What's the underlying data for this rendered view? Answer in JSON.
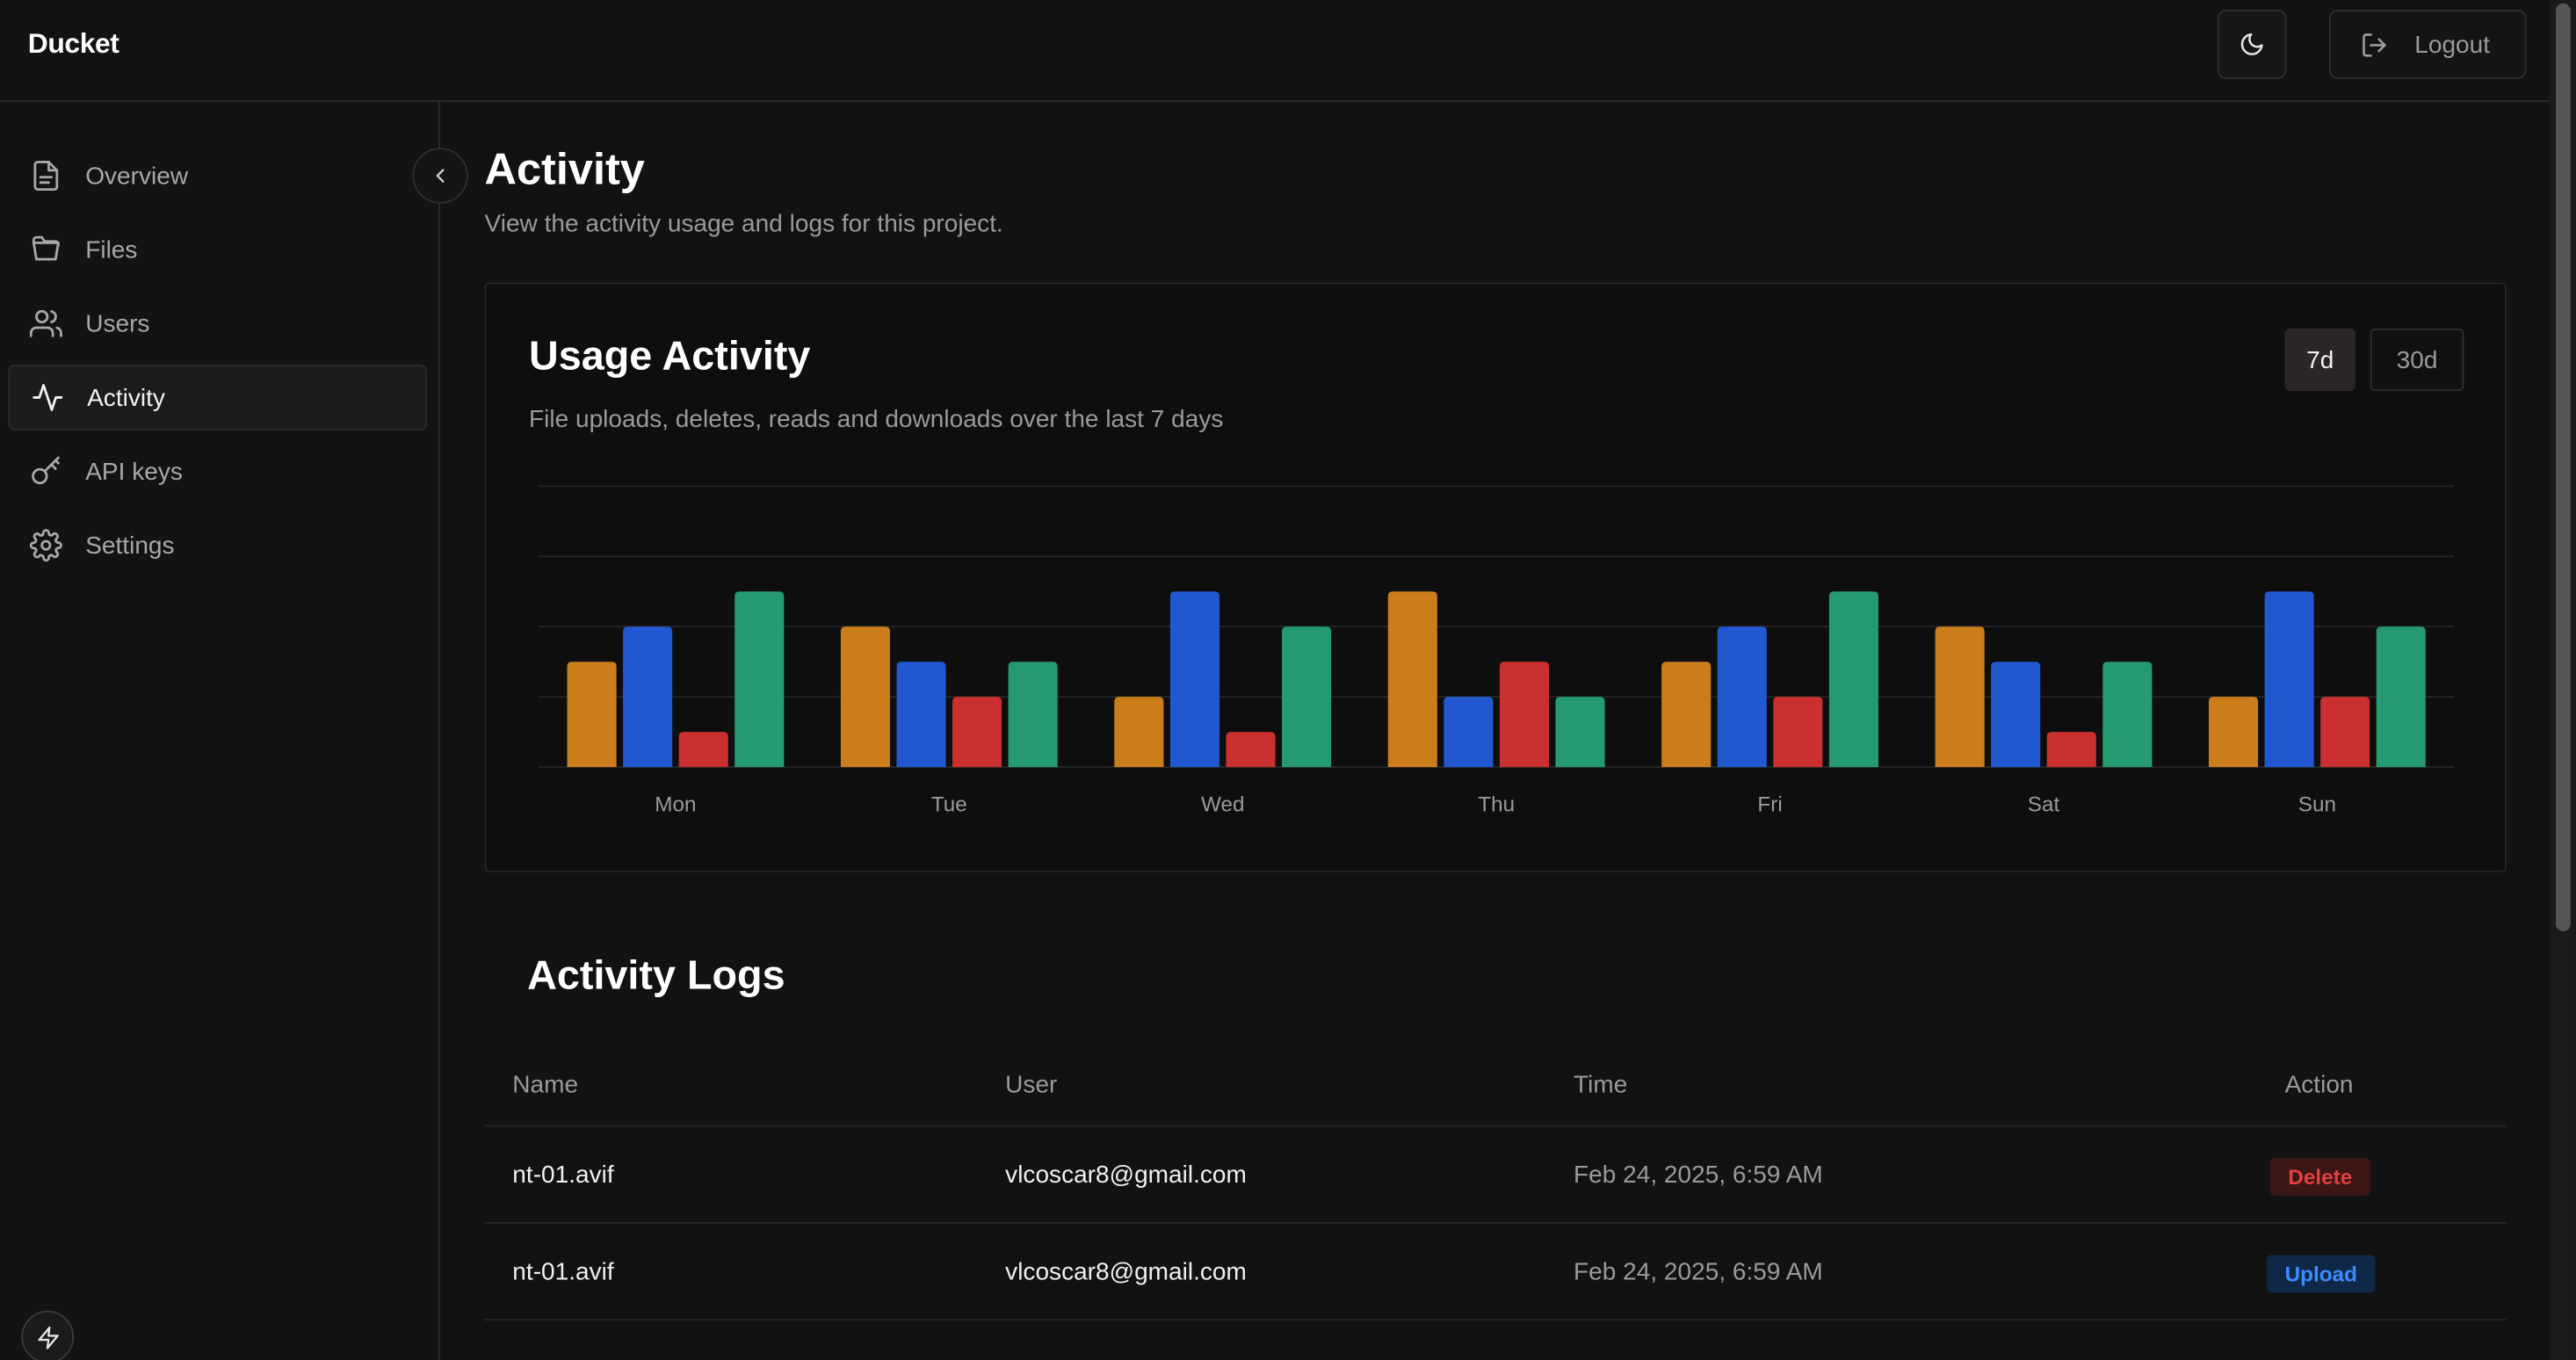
{
  "app": {
    "brand": "Ducket"
  },
  "header": {
    "logout_label": "Logout",
    "theme_icon": "moon-icon",
    "logout_icon": "logout-icon"
  },
  "sidebar": {
    "items": [
      {
        "label": "Overview",
        "icon": "document-icon",
        "active": false
      },
      {
        "label": "Files",
        "icon": "folder-icon",
        "active": false
      },
      {
        "label": "Users",
        "icon": "users-icon",
        "active": false
      },
      {
        "label": "Activity",
        "icon": "activity-icon",
        "active": true
      },
      {
        "label": "API keys",
        "icon": "key-icon",
        "active": false
      },
      {
        "label": "Settings",
        "icon": "gear-icon",
        "active": false
      }
    ]
  },
  "page": {
    "title": "Activity",
    "subtitle": "View the activity usage and logs for this project."
  },
  "usage": {
    "title": "Usage Activity",
    "subtitle": "File uploads, deletes, reads and downloads over the last 7 days",
    "ranges": [
      "7d",
      "30d"
    ],
    "selected_range": "7d"
  },
  "chart_data": {
    "type": "bar",
    "categories": [
      "Mon",
      "Tue",
      "Wed",
      "Thu",
      "Fri",
      "Sat",
      "Sun"
    ],
    "ylim": [
      0,
      8
    ],
    "series": [
      {
        "values": [
          3,
          4,
          2,
          5,
          3,
          4,
          2
        ],
        "color": "#cb7d1c"
      },
      {
        "values": [
          4,
          3,
          5,
          2,
          4,
          3,
          5
        ],
        "color": "#2158cf"
      },
      {
        "values": [
          1,
          2,
          1,
          3,
          2,
          1,
          2
        ],
        "color": "#c9302f"
      },
      {
        "values": [
          5,
          3,
          4,
          2,
          5,
          3,
          4
        ],
        "color": "#259a70"
      }
    ],
    "grid": true
  },
  "logs": {
    "title": "Activity Logs",
    "columns": [
      "Name",
      "User",
      "Time",
      "Action"
    ],
    "rows": [
      {
        "name": "nt-01.avif",
        "user": "vlcoscar8@gmail.com",
        "time": "Feb 24, 2025, 6:59 AM",
        "action": "Delete",
        "action_color": "#e0403d",
        "action_bg": "#3a1616"
      },
      {
        "name": "nt-01.avif",
        "user": "vlcoscar8@gmail.com",
        "time": "Feb 24, 2025, 6:59 AM",
        "action": "Upload",
        "action_color": "#3d8bff",
        "action_bg": "#0f2847"
      }
    ]
  }
}
